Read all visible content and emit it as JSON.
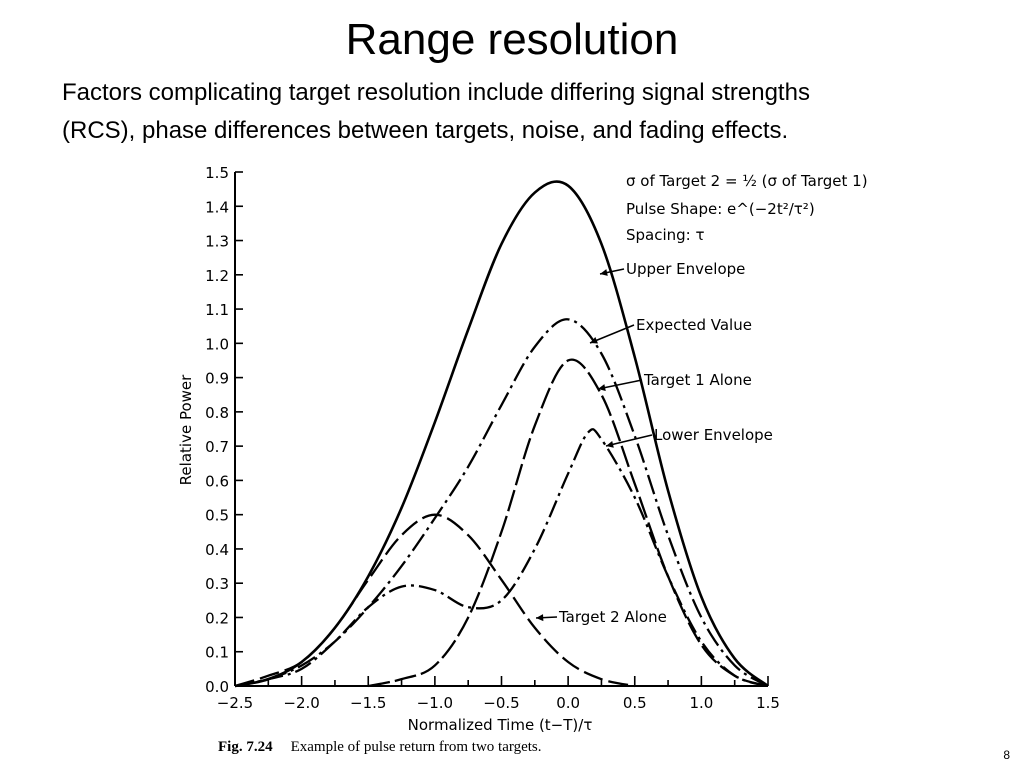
{
  "slide": {
    "title": "Range resolution",
    "body_lines": [
      "Factors complicating target resolution include differing signal strengths",
      "(RCS), phase differences between targets, noise, and fading effects."
    ],
    "page_number": "8"
  },
  "caption": {
    "fig_number": "Fig. 7.24",
    "text": "Example of pulse return from two targets."
  },
  "chart_data": {
    "type": "line",
    "xlabel": "Normalized Time (t−T)/τ",
    "ylabel": "Relative Power",
    "xlim": [
      -2.5,
      1.5
    ],
    "ylim": [
      0.0,
      1.5
    ],
    "x_ticks": [
      "−2.5",
      "−2.0",
      "−1.5",
      "−1.0",
      "−0.5",
      "0.0",
      "0.5",
      "1.0",
      "1.5"
    ],
    "y_ticks": [
      "0.0",
      "0.1",
      "0.2",
      "0.3",
      "0.4",
      "0.5",
      "0.6",
      "0.7",
      "0.8",
      "0.9",
      "1.0",
      "1.1",
      "1.2",
      "1.3",
      "1.4",
      "1.5"
    ],
    "grid": false,
    "notes": [
      "σ of Target 2 = ½ (σ of Target 1)",
      "Pulse Shape: e^(−2t²/τ²)",
      "Spacing: τ"
    ],
    "series": [
      {
        "name": "Upper Envelope",
        "x": [
          -2.5,
          -2.25,
          -2.0,
          -1.75,
          -1.5,
          -1.25,
          -1.0,
          -0.75,
          -0.5,
          -0.25,
          0.0,
          0.25,
          0.5,
          0.75,
          1.0,
          1.25,
          1.5
        ],
        "y": [
          0.0,
          0.02,
          0.07,
          0.17,
          0.32,
          0.52,
          0.77,
          1.04,
          1.29,
          1.44,
          1.46,
          1.29,
          0.96,
          0.57,
          0.26,
          0.08,
          0.0
        ]
      },
      {
        "name": "Expected Value",
        "x": [
          -2.5,
          -2.25,
          -2.0,
          -1.75,
          -1.5,
          -1.25,
          -1.0,
          -0.75,
          -0.5,
          -0.25,
          0.0,
          0.25,
          0.5,
          0.75,
          1.0,
          1.25,
          1.5
        ],
        "y": [
          0.0,
          0.02,
          0.06,
          0.13,
          0.23,
          0.35,
          0.49,
          0.64,
          0.82,
          0.99,
          1.07,
          0.97,
          0.73,
          0.44,
          0.2,
          0.06,
          0.0
        ]
      },
      {
        "name": "Target 1 Alone",
        "x": [
          -1.5,
          -1.25,
          -1.0,
          -0.75,
          -0.5,
          -0.25,
          0.0,
          0.25,
          0.5,
          0.75,
          1.0,
          1.25,
          1.5
        ],
        "y": [
          0.0,
          0.02,
          0.06,
          0.2,
          0.45,
          0.76,
          0.95,
          0.85,
          0.59,
          0.32,
          0.12,
          0.03,
          0.0
        ]
      },
      {
        "name": "Lower Envelope",
        "x": [
          -2.5,
          -2.25,
          -2.0,
          -1.75,
          -1.5,
          -1.25,
          -1.0,
          -0.75,
          -0.5,
          -0.25,
          0.0,
          0.15,
          0.25,
          0.5,
          0.75,
          1.0,
          1.25,
          1.5
        ],
        "y": [
          0.0,
          0.02,
          0.05,
          0.13,
          0.23,
          0.29,
          0.28,
          0.23,
          0.25,
          0.4,
          0.62,
          0.74,
          0.72,
          0.55,
          0.32,
          0.13,
          0.03,
          0.0
        ]
      },
      {
        "name": "Target 2 Alone",
        "x": [
          -2.5,
          -2.25,
          -2.0,
          -1.75,
          -1.5,
          -1.25,
          -1.0,
          -0.75,
          -0.5,
          -0.25,
          0.0,
          0.25,
          0.5
        ],
        "y": [
          0.0,
          0.03,
          0.07,
          0.17,
          0.31,
          0.44,
          0.5,
          0.44,
          0.31,
          0.17,
          0.07,
          0.02,
          0.0
        ]
      }
    ]
  }
}
